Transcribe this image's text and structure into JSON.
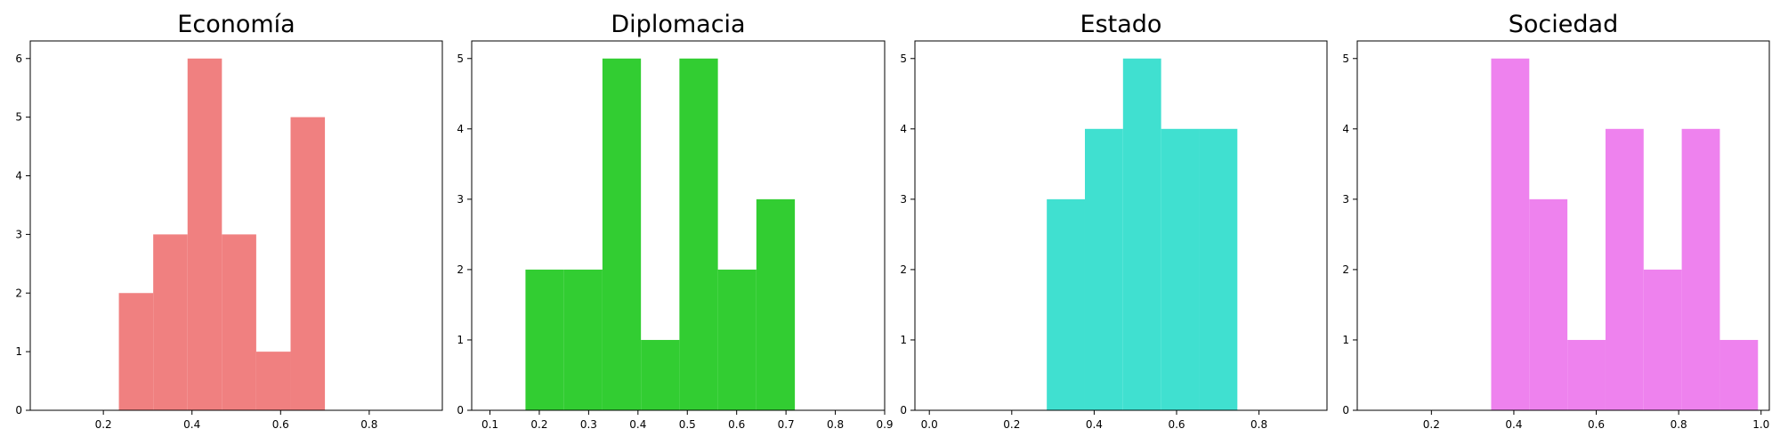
{
  "chart_data": [
    {
      "type": "histogram",
      "title": "Economía",
      "color": "#f08080",
      "xlim": [
        0.035,
        0.965
      ],
      "ylim": [
        0,
        6.3
      ],
      "xticks": [
        "0.2",
        "0.4",
        "0.6",
        "0.8"
      ],
      "yticks": [
        "0",
        "1",
        "2",
        "3",
        "4",
        "5",
        "6"
      ],
      "bins": [
        0.235,
        0.3125,
        0.39,
        0.4675,
        0.545,
        0.6225,
        0.7
      ],
      "bin_width": 0.0775,
      "values": [
        2,
        3,
        6,
        3,
        1,
        5
      ]
    },
    {
      "type": "histogram",
      "title": "Diplomacia",
      "color": "#32cd32",
      "xlim": [
        0.063,
        0.9
      ],
      "ylim": [
        0,
        5.25
      ],
      "xticks": [
        "0.1",
        "0.2",
        "0.3",
        "0.4",
        "0.5",
        "0.6",
        "0.7",
        "0.8",
        "0.9"
      ],
      "yticks": [
        "0",
        "1",
        "2",
        "3",
        "4",
        "5"
      ],
      "bins": [
        0.172,
        0.25,
        0.328,
        0.406,
        0.484,
        0.562,
        0.64
      ],
      "bin_width": 0.078,
      "values": [
        2,
        2,
        5,
        1,
        5,
        2,
        3
      ]
    },
    {
      "type": "histogram",
      "title": "Estado",
      "color": "#40e0d0",
      "xlim": [
        -0.035,
        0.965
      ],
      "ylim": [
        0,
        5.25
      ],
      "xticks": [
        "0.0",
        "0.2",
        "0.4",
        "0.6",
        "0.8"
      ],
      "yticks": [
        "0",
        "1",
        "2",
        "3",
        "4",
        "5"
      ],
      "bins": [
        0.285,
        0.3775,
        0.47,
        0.5625,
        0.655
      ],
      "bin_width": 0.0925,
      "values": [
        3,
        4,
        5,
        4,
        4
      ]
    },
    {
      "type": "histogram",
      "title": "Sociedad",
      "color": "#ee82ee",
      "xlim": [
        0.02,
        1.02
      ],
      "ylim": [
        0,
        5.25
      ],
      "xticks": [
        "0.2",
        "0.4",
        "0.6",
        "0.8",
        "1.0"
      ],
      "yticks": [
        "0",
        "1",
        "2",
        "3",
        "4",
        "5"
      ],
      "bins": [
        0.345,
        0.4375,
        0.53,
        0.6225,
        0.715,
        0.8075,
        0.9
      ],
      "bin_width": 0.0925,
      "values": [
        5,
        3,
        1,
        4,
        2,
        4,
        1
      ]
    }
  ]
}
